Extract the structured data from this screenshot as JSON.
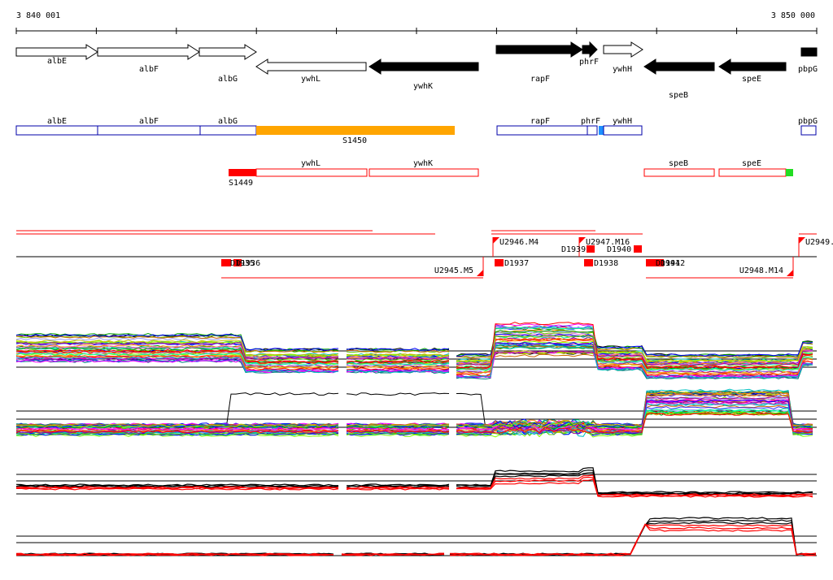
{
  "coords": {
    "start": "3 840 001",
    "end": "3 850 000"
  },
  "genes": [
    {
      "name": "albE",
      "strand": "+",
      "fill": "#ffffff"
    },
    {
      "name": "albF",
      "strand": "+",
      "fill": "#ffffff"
    },
    {
      "name": "albG",
      "strand": "+",
      "fill": "#ffffff"
    },
    {
      "name": "ywhL",
      "strand": "-",
      "fill": "#ffffff"
    },
    {
      "name": "ywhK",
      "strand": "-",
      "fill": "#000000"
    },
    {
      "name": "rapF",
      "strand": "+",
      "fill": "#000000"
    },
    {
      "name": "phrF",
      "strand": "+",
      "fill": "#000000"
    },
    {
      "name": "ywhH",
      "strand": "+",
      "fill": "#ffffff"
    },
    {
      "name": "speB",
      "strand": "-",
      "fill": "#000000"
    },
    {
      "name": "speE",
      "strand": "-",
      "fill": "#000000"
    },
    {
      "name": "pbpG",
      "strand": "+",
      "fill": "#000000"
    }
  ],
  "operons_forward": [
    {
      "name": "albE"
    },
    {
      "name": "albF"
    },
    {
      "name": "albG"
    },
    {
      "name": "rapF"
    },
    {
      "name": "phrF"
    },
    {
      "name": "ywhH"
    },
    {
      "name": "pbpG"
    }
  ],
  "forward_features": [
    {
      "name": "S1450",
      "color": "#ffa500"
    }
  ],
  "operons_reverse": [
    {
      "name": "ywhL"
    },
    {
      "name": "ywhK"
    },
    {
      "name": "speB"
    },
    {
      "name": "speE"
    }
  ],
  "reverse_features": [
    {
      "name": "S1449",
      "color": "#ff0000"
    }
  ],
  "transcripts_forward": [
    {
      "name": "U2946.M4"
    },
    {
      "name": "U2947.M16"
    },
    {
      "name": "U2949."
    }
  ],
  "transcripts_reverse": [
    {
      "name": "U2945.M5"
    },
    {
      "name": "U2948.M14"
    }
  ],
  "regulators": [
    {
      "name": "D1935"
    },
    {
      "name": "D1936"
    },
    {
      "name": "D1937"
    },
    {
      "name": "D1938"
    },
    {
      "name": "D1939"
    },
    {
      "name": "D1940"
    },
    {
      "name": "D1941"
    },
    {
      "name": "D1942"
    }
  ],
  "colors": {
    "operon_forward": "#0000aa",
    "operon_reverse": "#ff0000",
    "ends_marker_blue": "#1e90ff",
    "ends_marker_green": "#22dd22",
    "profile_black": "#000000",
    "profile_red": "#ff0000",
    "palette": [
      "#ff00ff",
      "#00c0c0",
      "#00a000",
      "#0000ff",
      "#ff8000",
      "#c0c000",
      "#a000a0",
      "#ff0000",
      "#008080",
      "#80ff00",
      "#ff66cc",
      "#3333ff",
      "#66cc00",
      "#cc6600",
      "#9999ff",
      "#00ff99"
    ]
  }
}
